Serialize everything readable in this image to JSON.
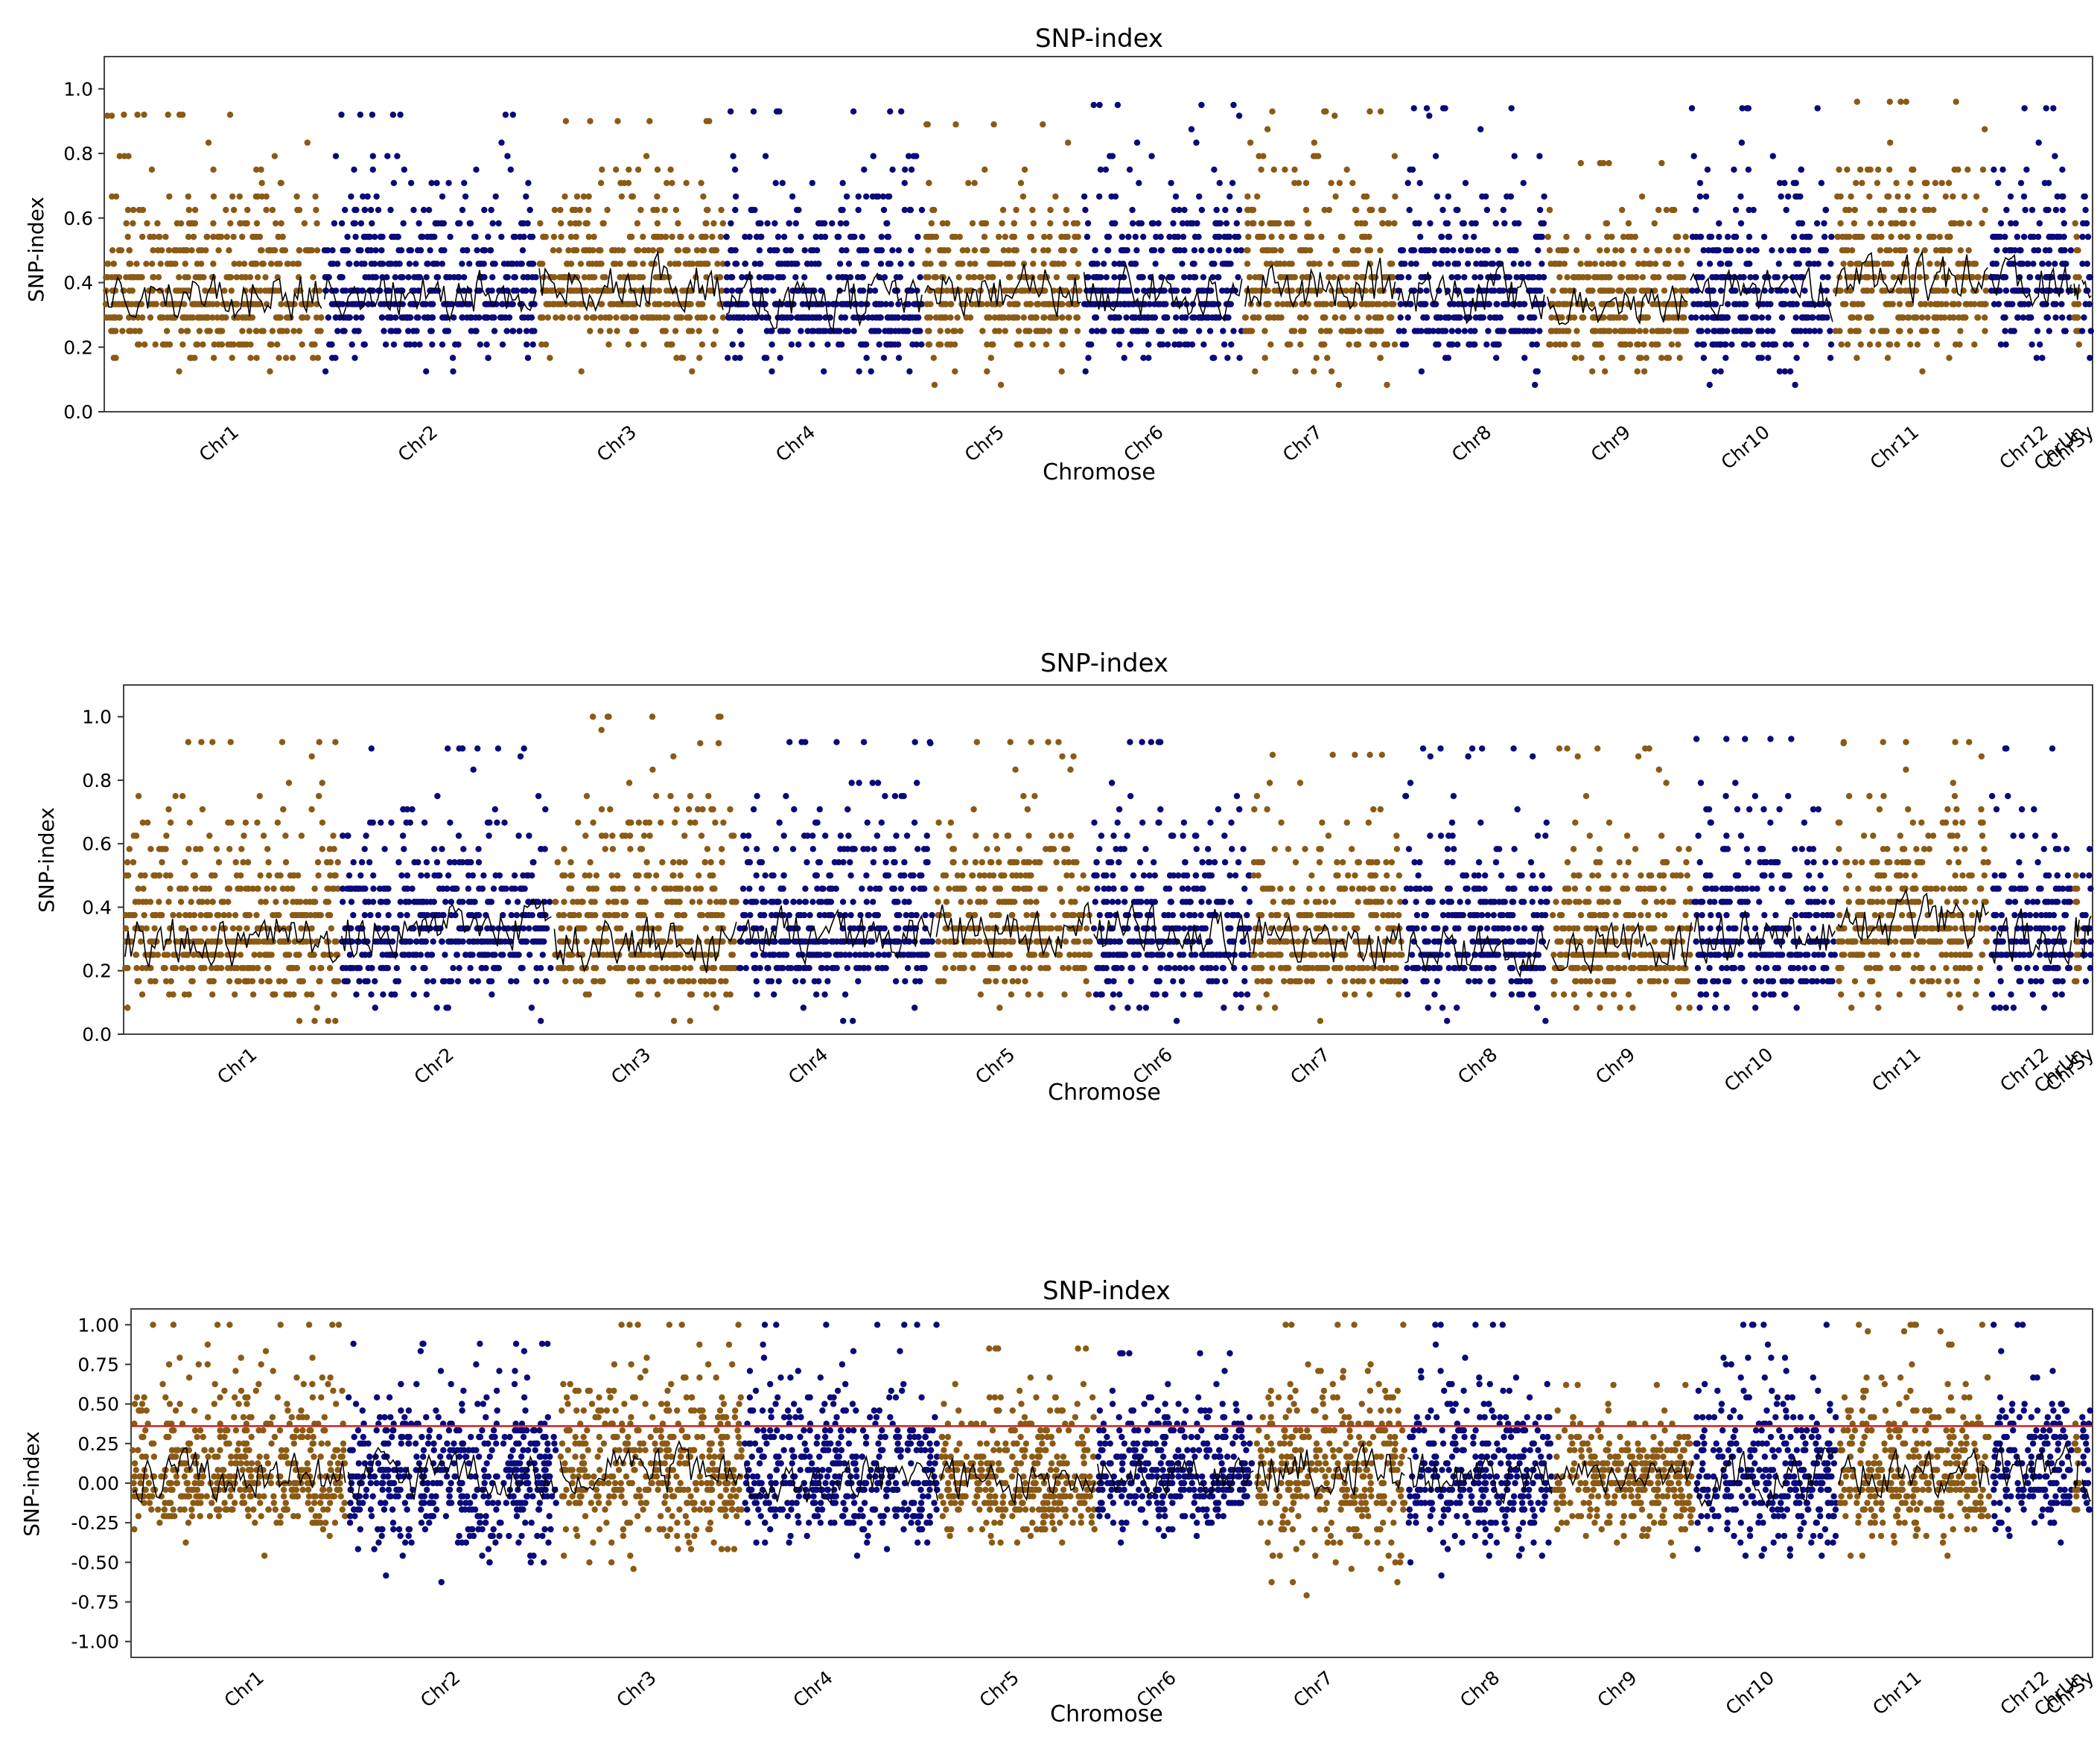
{
  "figure": {
    "colors": {
      "even_chromosome": "#8B5A14",
      "odd_chromosome": "#0A0A7A",
      "sliding_mean": "#000000",
      "threshold": "#CC2222"
    }
  },
  "chart_data": [
    {
      "type": "scatter",
      "title": "SNP-index",
      "xlabel": "Chromose",
      "ylabel": "SNP-index",
      "ylim": [
        0,
        1.1
      ],
      "yticks": [
        "0.0",
        "0.2",
        "0.4",
        "0.6",
        "0.8",
        "1.0"
      ],
      "ytick_values": [
        0,
        0.2,
        0.4,
        0.6,
        0.8,
        1.0
      ],
      "categories": [
        "Chr1",
        "Chr2",
        "Chr3",
        "Chr4",
        "Chr5",
        "Chr6",
        "Chr7",
        "Chr8",
        "Chr9",
        "Chr10",
        "Chr11",
        "Chr12",
        "ChrUn",
        "ChrSy"
      ],
      "series": [
        {
          "name": "Chr1",
          "mean": 0.36,
          "min": 0.07,
          "max": 0.92
        },
        {
          "name": "Chr2",
          "mean": 0.37,
          "min": 0.07,
          "max": 0.92
        },
        {
          "name": "Chr3",
          "mean": 0.4,
          "min": 0.07,
          "max": 0.9
        },
        {
          "name": "Chr4",
          "mean": 0.35,
          "min": 0.06,
          "max": 0.93
        },
        {
          "name": "Chr5",
          "mean": 0.38,
          "min": 0.07,
          "max": 0.89
        },
        {
          "name": "Chr6",
          "mean": 0.37,
          "min": 0.08,
          "max": 0.95
        },
        {
          "name": "Chr7",
          "mean": 0.39,
          "min": 0.05,
          "max": 0.93
        },
        {
          "name": "Chr8",
          "mean": 0.36,
          "min": 0.06,
          "max": 0.94
        },
        {
          "name": "Chr9",
          "mean": 0.33,
          "min": 0.05,
          "max": 0.77
        },
        {
          "name": "Chr10",
          "mean": 0.36,
          "min": 0.04,
          "max": 0.94
        },
        {
          "name": "Chr11",
          "mean": 0.42,
          "min": 0.06,
          "max": 0.96
        },
        {
          "name": "Chr12",
          "mean": 0.41,
          "min": 0.07,
          "max": 0.94
        },
        {
          "name": "ChrUn",
          "mean": 0.36,
          "min": 0.12,
          "max": 0.77
        },
        {
          "name": "ChrSy",
          "mean": 0.4,
          "min": 0.1,
          "max": 0.82
        }
      ],
      "threshold": null
    },
    {
      "type": "scatter",
      "title": "SNP-index",
      "xlabel": "Chromose",
      "ylabel": "SNP-index",
      "ylim": [
        0,
        1.1
      ],
      "yticks": [
        "0.0",
        "0.2",
        "0.4",
        "0.6",
        "0.8",
        "1.0"
      ],
      "ytick_values": [
        0,
        0.2,
        0.4,
        0.6,
        0.8,
        1.0
      ],
      "categories": [
        "Chr1",
        "Chr2",
        "Chr3",
        "Chr4",
        "Chr5",
        "Chr6",
        "Chr7",
        "Chr8",
        "Chr9",
        "Chr10",
        "Chr11",
        "Chr12",
        "ChrUn",
        "ChrSy"
      ],
      "series": [
        {
          "name": "Chr1",
          "mean": 0.3,
          "min": 0.01,
          "max": 0.92
        },
        {
          "name": "Chr2",
          "mean": 0.33,
          "min": 0.01,
          "max": 0.9
        },
        {
          "name": "Chr3",
          "mean": 0.29,
          "min": 0.02,
          "max": 1.0
        },
        {
          "name": "Chr4",
          "mean": 0.32,
          "min": 0.01,
          "max": 0.92
        },
        {
          "name": "Chr5",
          "mean": 0.33,
          "min": 0.04,
          "max": 0.92
        },
        {
          "name": "Chr6",
          "mean": 0.32,
          "min": 0.01,
          "max": 0.92
        },
        {
          "name": "Chr7",
          "mean": 0.29,
          "min": 0.02,
          "max": 0.88
        },
        {
          "name": "Chr8",
          "mean": 0.28,
          "min": 0.02,
          "max": 0.9
        },
        {
          "name": "Chr9",
          "mean": 0.28,
          "min": 0.02,
          "max": 0.9
        },
        {
          "name": "Chr10",
          "mean": 0.3,
          "min": 0.01,
          "max": 0.93
        },
        {
          "name": "Chr11",
          "mean": 0.35,
          "min": 0.01,
          "max": 0.92
        },
        {
          "name": "Chr12",
          "mean": 0.3,
          "min": 0.01,
          "max": 0.9
        },
        {
          "name": "ChrUn",
          "mean": 0.33,
          "min": 0.05,
          "max": 0.7
        },
        {
          "name": "ChrSy",
          "mean": 0.3,
          "min": 0.05,
          "max": 0.86
        }
      ],
      "threshold": null
    },
    {
      "type": "scatter",
      "title": "SNP-index",
      "xlabel": "Chromose",
      "ylabel": "SNP-index",
      "ylim": [
        -1.1,
        1.1
      ],
      "yticks": [
        "-1.00",
        "-0.75",
        "-0.50",
        "-0.25",
        "0.00",
        "0.25",
        "0.50",
        "0.75",
        "1.00"
      ],
      "ytick_values": [
        -1.0,
        -0.75,
        -0.5,
        -0.25,
        0,
        0.25,
        0.5,
        0.75,
        1.0
      ],
      "categories": [
        "Chr1",
        "Chr2",
        "Chr3",
        "Chr4",
        "Chr5",
        "Chr6",
        "Chr7",
        "Chr8",
        "Chr9",
        "Chr10",
        "Chr11",
        "Chr12",
        "ChrUn",
        "ChrSy"
      ],
      "series": [
        {
          "name": "Chr1",
          "mean": 0.05,
          "min": -0.52,
          "max": 1.0
        },
        {
          "name": "Chr2",
          "mean": 0.05,
          "min": -0.65,
          "max": 0.88
        },
        {
          "name": "Chr3",
          "mean": 0.08,
          "min": -0.68,
          "max": 1.0
        },
        {
          "name": "Chr4",
          "mean": 0.02,
          "min": -0.55,
          "max": 1.0
        },
        {
          "name": "Chr5",
          "mean": 0.02,
          "min": -0.58,
          "max": 0.85
        },
        {
          "name": "Chr6",
          "mean": 0.05,
          "min": -0.5,
          "max": 0.82
        },
        {
          "name": "Chr7",
          "mean": 0.08,
          "min": -0.78,
          "max": 1.0
        },
        {
          "name": "Chr8",
          "mean": 0.04,
          "min": -0.62,
          "max": 1.0
        },
        {
          "name": "Chr9",
          "mean": 0.05,
          "min": -0.5,
          "max": 0.62
        },
        {
          "name": "Chr10",
          "mean": 0.05,
          "min": -0.7,
          "max": 1.0
        },
        {
          "name": "Chr11",
          "mean": 0.05,
          "min": -0.55,
          "max": 1.0
        },
        {
          "name": "Chr12",
          "mean": 0.1,
          "min": -0.65,
          "max": 1.0
        },
        {
          "name": "ChrUn",
          "mean": 0.05,
          "min": -0.4,
          "max": 0.75
        },
        {
          "name": "ChrSy",
          "mean": 0.02,
          "min": -0.4,
          "max": 0.8
        }
      ],
      "threshold": 0.36
    }
  ]
}
